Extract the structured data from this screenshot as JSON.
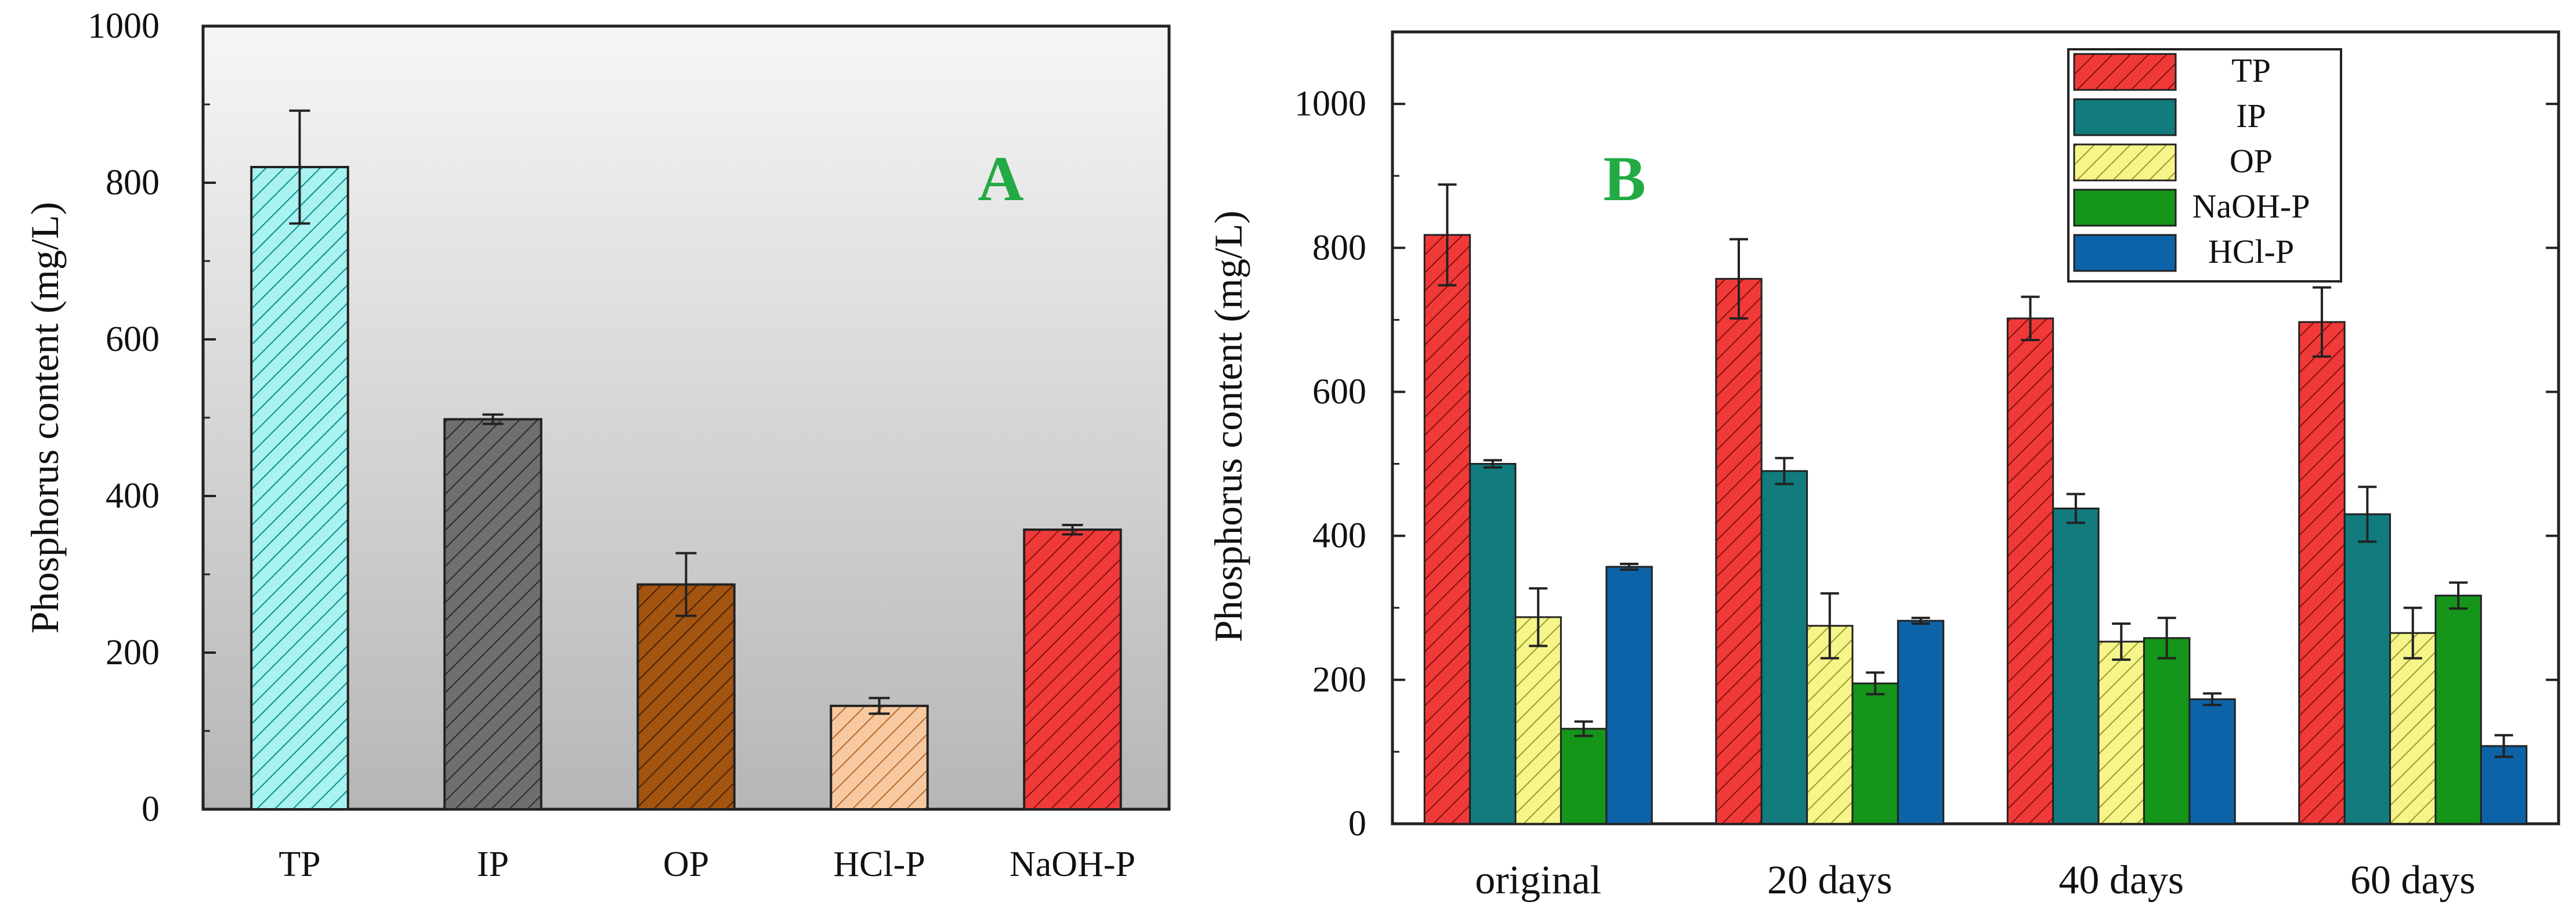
{
  "chart_data": [
    {
      "type": "bar",
      "panel_label": "A",
      "categories": [
        "TP",
        "IP",
        "OP",
        "HCl-P",
        "NaOH-P"
      ],
      "values": [
        820,
        498,
        287,
        132,
        357
      ],
      "errors": [
        72,
        6,
        40,
        10,
        6
      ],
      "ylabel": "Phosphorus content (mg/L)",
      "xlabel": "",
      "ylim": [
        0,
        1000
      ],
      "yticks": [
        0,
        200,
        400,
        600,
        800,
        1000
      ],
      "colors": [
        "#a8f2f0",
        "#6f6f6f",
        "#a35410",
        "#f7c9a0",
        "#f03a3a"
      ],
      "hatch": "diagonal",
      "background": "gradient-gray",
      "legend": "none"
    },
    {
      "type": "bar",
      "panel_label": "B",
      "categories": [
        "original",
        "20 days",
        "40 days",
        "60 days"
      ],
      "series": [
        {
          "name": "TP",
          "values": [
            818,
            757,
            702,
            697
          ],
          "errors": [
            70,
            55,
            30,
            48
          ],
          "color": "#f03a3a",
          "hatch": true
        },
        {
          "name": "IP",
          "values": [
            500,
            490,
            438,
            430
          ],
          "errors": [
            5,
            18,
            20,
            38
          ],
          "color": "#117b7d",
          "hatch": false
        },
        {
          "name": "OP",
          "values": [
            287,
            275,
            253,
            265
          ],
          "errors": [
            40,
            45,
            25,
            35
          ],
          "color": "#f5f58a",
          "hatch": true
        },
        {
          "name": "NaOH-P",
          "values": [
            132,
            195,
            258,
            317
          ],
          "errors": [
            10,
            15,
            28,
            18
          ],
          "color": "#15951a",
          "hatch": false
        },
        {
          "name": "HCl-P",
          "values": [
            357,
            282,
            173,
            108
          ],
          "errors": [
            4,
            4,
            8,
            15
          ],
          "color": "#0d63a8",
          "hatch": false
        }
      ],
      "ylabel": "Phosphorus content (mg/L)",
      "xlabel": "",
      "ylim": [
        0,
        1100
      ],
      "yticks": [
        0,
        200,
        400,
        600,
        800,
        1000
      ],
      "legend": "top-right"
    }
  ],
  "label_color": "#22aa44"
}
